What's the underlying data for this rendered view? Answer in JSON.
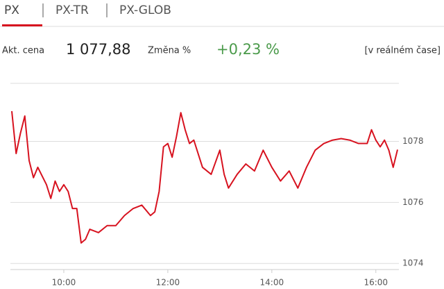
{
  "tabs": [
    "PX",
    "PX-TR",
    "PX-GLOB"
  ],
  "quote": {
    "price_label": "Akt. cena",
    "price": "1 077,88",
    "change_label": "Změna %",
    "change": "+0,23 %",
    "note": "[v reálném čase]"
  },
  "chart_data": {
    "type": "line",
    "x": [
      "9:00",
      "9:05",
      "9:10",
      "9:15",
      "9:20",
      "9:25",
      "9:30",
      "9:40",
      "9:45",
      "9:50",
      "9:55",
      "10:00",
      "10:05",
      "10:10",
      "10:15",
      "10:20",
      "10:25",
      "10:30",
      "10:40",
      "10:50",
      "11:00",
      "11:10",
      "11:20",
      "11:30",
      "11:40",
      "11:45",
      "11:50",
      "11:55",
      "12:00",
      "12:05",
      "12:10",
      "12:15",
      "12:20",
      "12:25",
      "12:30",
      "12:40",
      "12:50",
      "13:00",
      "13:05",
      "13:10",
      "13:20",
      "13:30",
      "13:40",
      "13:50",
      "14:00",
      "14:10",
      "14:20",
      "14:30",
      "14:40",
      "14:50",
      "15:00",
      "15:10",
      "15:20",
      "15:30",
      "15:40",
      "15:50",
      "15:55",
      "16:00",
      "16:05",
      "16:10",
      "16:15",
      "16:20",
      "16:25"
    ],
    "series": [
      {
        "name": "PX",
        "color": "#d7121f",
        "values": [
          1078.99,
          1077.6,
          1078.27,
          1078.83,
          1077.37,
          1076.81,
          1077.15,
          1076.58,
          1076.13,
          1076.7,
          1076.36,
          1076.58,
          1076.36,
          1075.8,
          1075.8,
          1074.67,
          1074.79,
          1075.12,
          1075.01,
          1075.24,
          1075.24,
          1075.57,
          1075.8,
          1075.91,
          1075.57,
          1075.69,
          1076.36,
          1077.82,
          1077.93,
          1077.48,
          1078.16,
          1078.94,
          1078.38,
          1077.93,
          1078.04,
          1077.15,
          1076.92,
          1077.71,
          1076.92,
          1076.47,
          1076.92,
          1077.26,
          1077.03,
          1077.71,
          1077.15,
          1076.7,
          1077.03,
          1076.47,
          1077.15,
          1077.71,
          1077.93,
          1078.04,
          1078.09,
          1078.04,
          1077.93,
          1077.93,
          1078.38,
          1078.04,
          1077.82,
          1078.04,
          1077.71,
          1077.15,
          1077.73
        ]
      }
    ],
    "xlim": [
      "9:00",
      "16:25"
    ],
    "xticks": [
      "10:00",
      "12:00",
      "14:00",
      "16:00"
    ],
    "ylim": [
      1073.8,
      1079.9
    ],
    "yticks": [
      1074,
      1076,
      1078
    ],
    "grid": true
  }
}
